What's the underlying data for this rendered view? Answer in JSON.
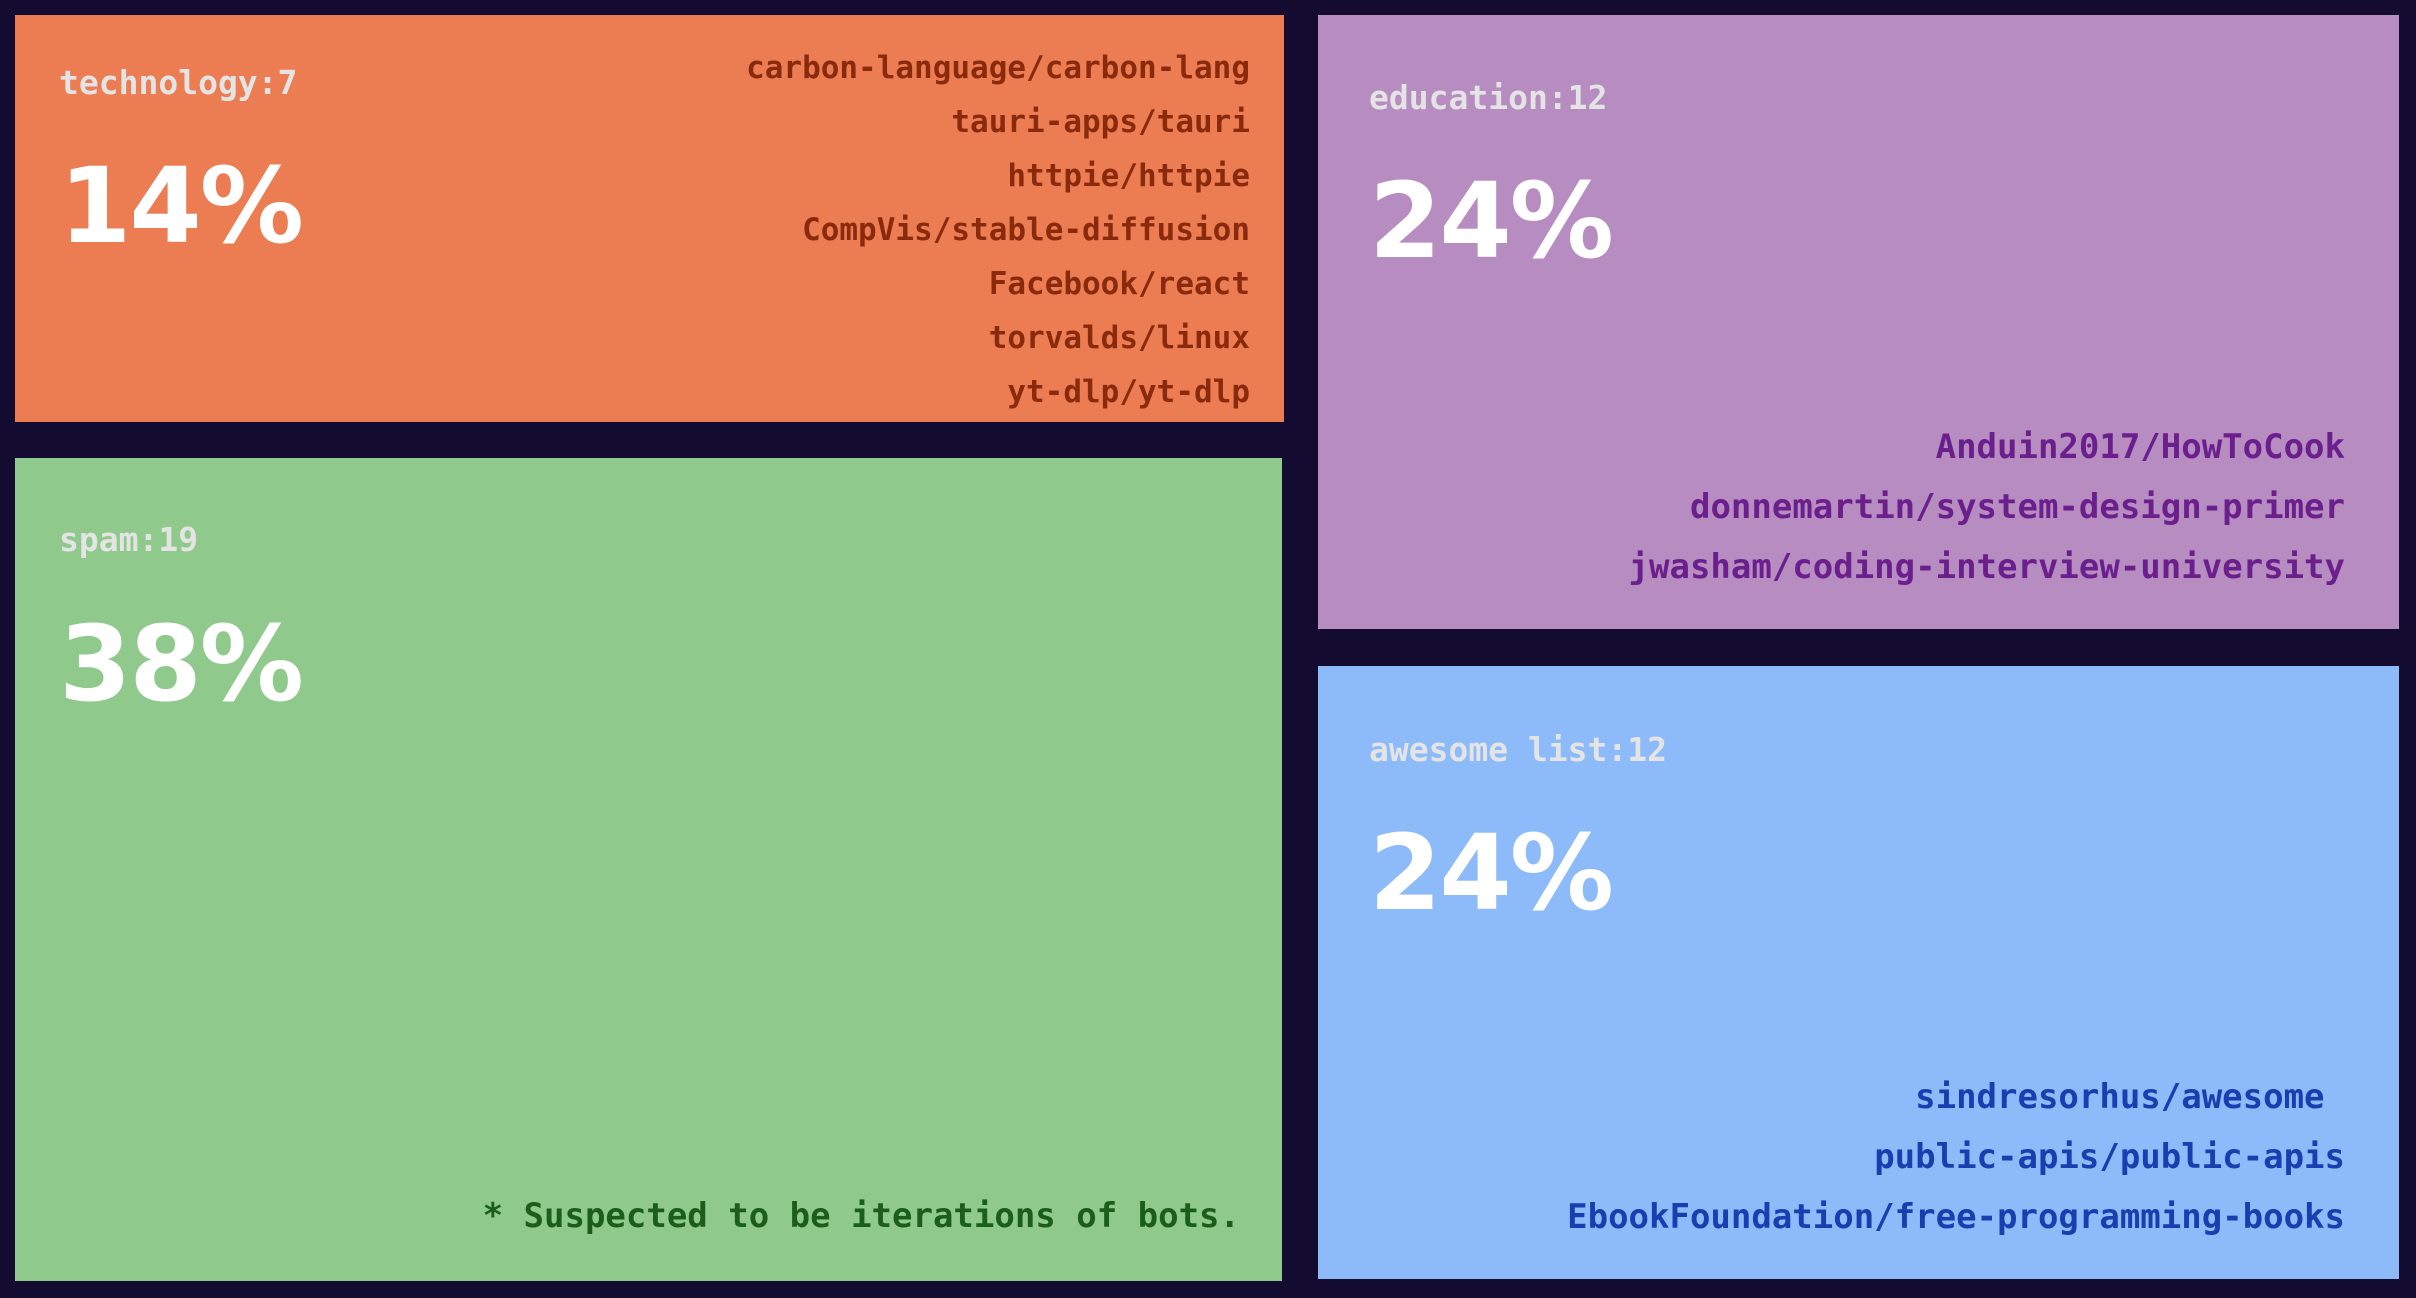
{
  "chart_data": {
    "type": "treemap",
    "cells": [
      {
        "key": "technology",
        "label": "technology:7",
        "count": 7,
        "percent": "14%",
        "color": "#ec7d53",
        "text_color": "#8a2a0d",
        "repos": [
          "carbon-language/carbon-lang",
          "tauri-apps/tauri",
          "httpie/httpie",
          "CompVis/stable-diffusion",
          "Facebook/react",
          "torvalds/linux",
          "yt-dlp/yt-dlp"
        ]
      },
      {
        "key": "spam",
        "label": "spam:19",
        "count": 19,
        "percent": "38%",
        "color": "#8fca8c",
        "text_color": "#1b5e1b",
        "note": "* Suspected to be iterations of bots."
      },
      {
        "key": "education",
        "label": "education:12",
        "count": 12,
        "percent": "24%",
        "color": "#b68cc1",
        "text_color": "#6b1f8c",
        "repos": [
          "Anduin2017/HowToCook",
          "donnemartin/system-design-primer",
          "jwasham/coding-interview-university"
        ]
      },
      {
        "key": "awesome",
        "label": "awesome list:12",
        "count": 12,
        "percent": "24%",
        "color": "#8dbbf9",
        "text_color": "#1a3db0",
        "repos": [
          "sindresorhus/awesome ",
          "public-apis/public-apis",
          "EbookFoundation/free-programming-books"
        ]
      }
    ]
  }
}
